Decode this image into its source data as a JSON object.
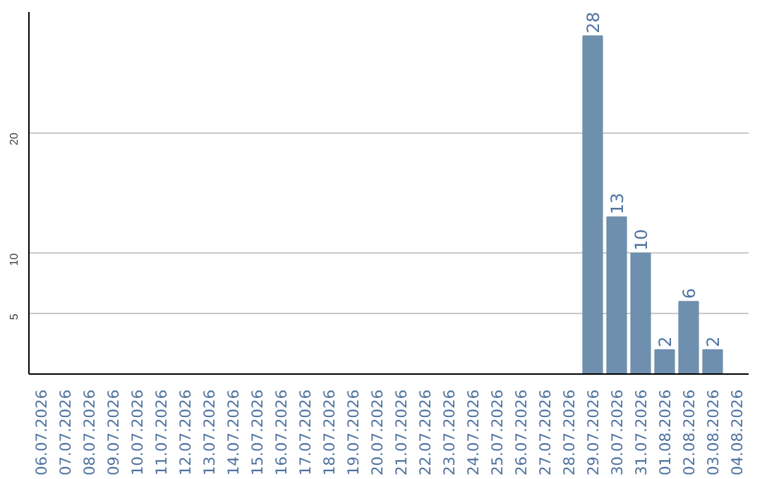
{
  "chart_data": {
    "type": "bar",
    "categories": [
      "06.07.2026",
      "07.07.2026",
      "08.07.2026",
      "09.07.2026",
      "10.07.2026",
      "11.07.2026",
      "12.07.2026",
      "13.07.2026",
      "14.07.2026",
      "15.07.2026",
      "16.07.2026",
      "17.07.2026",
      "18.07.2026",
      "19.07.2026",
      "20.07.2026",
      "21.07.2026",
      "22.07.2026",
      "23.07.2026",
      "24.07.2026",
      "25.07.2026",
      "26.07.2026",
      "27.07.2026",
      "28.07.2026",
      "29.07.2026",
      "30.07.2026",
      "31.07.2026",
      "01.08.2026",
      "02.08.2026",
      "03.08.2026",
      "04.08.2026"
    ],
    "values": [
      null,
      null,
      null,
      null,
      null,
      null,
      null,
      null,
      null,
      null,
      null,
      null,
      null,
      null,
      null,
      null,
      null,
      null,
      null,
      null,
      null,
      null,
      null,
      28,
      13,
      10,
      2,
      6,
      2,
      null
    ],
    "color": "#6f8fae",
    "ylim": [
      0,
      30
    ],
    "yticks": [
      5,
      10,
      20
    ],
    "grid": "y",
    "data_labels": true
  }
}
